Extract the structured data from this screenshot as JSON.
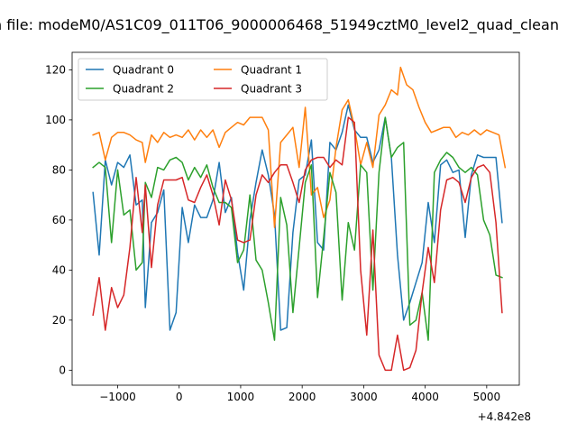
{
  "chart_data": {
    "type": "line",
    "title": "n file: modeM0/AS1C09_011T06_9000006468_51949cztM0_level2_quad_clean",
    "xlabel": "",
    "ylabel": "",
    "x_offset_label": "+4.842e8",
    "xlim": [
      -1740,
      5530
    ],
    "ylim": [
      -6,
      127
    ],
    "x_ticks": [
      -1000,
      0,
      1000,
      2000,
      3000,
      4000,
      5000
    ],
    "x_tick_labels": [
      "−1000",
      "0",
      "1000",
      "2000",
      "3000",
      "4000",
      "5000"
    ],
    "y_ticks": [
      0,
      20,
      40,
      60,
      80,
      100,
      120
    ],
    "y_tick_labels": [
      "0",
      "20",
      "40",
      "60",
      "80",
      "100",
      "120"
    ],
    "grid": false,
    "legend": {
      "placement": "top-left",
      "columns": 2
    },
    "series": [
      {
        "name": "Quadrant 0",
        "color": "#1f77b4",
        "points": [
          [
            -1400,
            71
          ],
          [
            -1300,
            46
          ],
          [
            -1200,
            84
          ],
          [
            -1100,
            74
          ],
          [
            -1000,
            83
          ],
          [
            -900,
            81
          ],
          [
            -800,
            86
          ],
          [
            -700,
            66
          ],
          [
            -600,
            68
          ],
          [
            -550,
            25
          ],
          [
            -450,
            59
          ],
          [
            -350,
            63
          ],
          [
            -250,
            72
          ],
          [
            -150,
            16
          ],
          [
            -50,
            23
          ],
          [
            50,
            65
          ],
          [
            150,
            51
          ],
          [
            250,
            66
          ],
          [
            350,
            61
          ],
          [
            450,
            61
          ],
          [
            550,
            68
          ],
          [
            650,
            83
          ],
          [
            750,
            63
          ],
          [
            850,
            69
          ],
          [
            950,
            47
          ],
          [
            1050,
            32
          ],
          [
            1150,
            60
          ],
          [
            1250,
            75
          ],
          [
            1350,
            88
          ],
          [
            1450,
            78
          ],
          [
            1550,
            62
          ],
          [
            1650,
            16
          ],
          [
            1750,
            17
          ],
          [
            1850,
            55
          ],
          [
            1950,
            76
          ],
          [
            2050,
            78
          ],
          [
            2150,
            92
          ],
          [
            2250,
            51
          ],
          [
            2350,
            48
          ],
          [
            2450,
            91
          ],
          [
            2550,
            88
          ],
          [
            2650,
            95
          ],
          [
            2750,
            106
          ],
          [
            2850,
            96
          ],
          [
            2950,
            93
          ],
          [
            3050,
            93
          ],
          [
            3150,
            83
          ],
          [
            3250,
            88
          ],
          [
            3350,
            101
          ],
          [
            3450,
            85
          ],
          [
            3550,
            46
          ],
          [
            3650,
            20
          ],
          [
            3750,
            27
          ],
          [
            3850,
            35
          ],
          [
            3950,
            43
          ],
          [
            4050,
            67
          ],
          [
            4150,
            51
          ],
          [
            4250,
            82
          ],
          [
            4350,
            84
          ],
          [
            4450,
            79
          ],
          [
            4550,
            80
          ],
          [
            4650,
            53
          ],
          [
            4750,
            78
          ],
          [
            4850,
            86
          ],
          [
            4950,
            85
          ],
          [
            5050,
            85
          ],
          [
            5150,
            85
          ],
          [
            5250,
            59
          ]
        ]
      },
      {
        "name": "Quadrant 1",
        "color": "#ff7f0e",
        "points": [
          [
            -1400,
            94
          ],
          [
            -1300,
            95
          ],
          [
            -1200,
            84
          ],
          [
            -1100,
            93
          ],
          [
            -1000,
            95
          ],
          [
            -900,
            95
          ],
          [
            -800,
            94
          ],
          [
            -700,
            92
          ],
          [
            -600,
            91
          ],
          [
            -550,
            83
          ],
          [
            -450,
            94
          ],
          [
            -350,
            91
          ],
          [
            -250,
            95
          ],
          [
            -150,
            93
          ],
          [
            -50,
            94
          ],
          [
            50,
            93
          ],
          [
            150,
            96
          ],
          [
            250,
            92
          ],
          [
            350,
            96
          ],
          [
            450,
            93
          ],
          [
            550,
            96
          ],
          [
            650,
            89
          ],
          [
            750,
            95
          ],
          [
            850,
            97
          ],
          [
            950,
            99
          ],
          [
            1050,
            98
          ],
          [
            1150,
            101
          ],
          [
            1250,
            101
          ],
          [
            1350,
            101
          ],
          [
            1450,
            96
          ],
          [
            1550,
            57
          ],
          [
            1650,
            91
          ],
          [
            1750,
            94
          ],
          [
            1850,
            97
          ],
          [
            1950,
            81
          ],
          [
            2050,
            105
          ],
          [
            2150,
            70
          ],
          [
            2250,
            73
          ],
          [
            2350,
            61
          ],
          [
            2450,
            68
          ],
          [
            2550,
            89
          ],
          [
            2650,
            104
          ],
          [
            2750,
            108
          ],
          [
            2850,
            97
          ],
          [
            2950,
            82
          ],
          [
            3050,
            91
          ],
          [
            3150,
            81
          ],
          [
            3250,
            102
          ],
          [
            3350,
            106
          ],
          [
            3450,
            112
          ],
          [
            3550,
            110
          ],
          [
            3600,
            121
          ],
          [
            3700,
            114
          ],
          [
            3800,
            112
          ],
          [
            3900,
            105
          ],
          [
            4000,
            99
          ],
          [
            4100,
            95
          ],
          [
            4200,
            96
          ],
          [
            4300,
            97
          ],
          [
            4400,
            97
          ],
          [
            4500,
            93
          ],
          [
            4600,
            95
          ],
          [
            4700,
            94
          ],
          [
            4800,
            96
          ],
          [
            4900,
            94
          ],
          [
            5000,
            96
          ],
          [
            5100,
            95
          ],
          [
            5200,
            94
          ],
          [
            5300,
            81
          ]
        ]
      },
      {
        "name": "Quadrant 2",
        "color": "#2ca02c",
        "points": [
          [
            -1400,
            81
          ],
          [
            -1300,
            83
          ],
          [
            -1200,
            81
          ],
          [
            -1100,
            51
          ],
          [
            -1000,
            80
          ],
          [
            -900,
            62
          ],
          [
            -800,
            64
          ],
          [
            -700,
            40
          ],
          [
            -600,
            43
          ],
          [
            -550,
            75
          ],
          [
            -450,
            69
          ],
          [
            -350,
            81
          ],
          [
            -250,
            80
          ],
          [
            -150,
            84
          ],
          [
            -50,
            85
          ],
          [
            50,
            83
          ],
          [
            150,
            76
          ],
          [
            250,
            81
          ],
          [
            350,
            77
          ],
          [
            450,
            82
          ],
          [
            550,
            73
          ],
          [
            650,
            67
          ],
          [
            750,
            67
          ],
          [
            850,
            65
          ],
          [
            950,
            43
          ],
          [
            1050,
            48
          ],
          [
            1150,
            70
          ],
          [
            1250,
            44
          ],
          [
            1350,
            40
          ],
          [
            1450,
            27
          ],
          [
            1550,
            12
          ],
          [
            1650,
            69
          ],
          [
            1750,
            58
          ],
          [
            1850,
            23
          ],
          [
            1950,
            49
          ],
          [
            2050,
            75
          ],
          [
            2150,
            82
          ],
          [
            2250,
            29
          ],
          [
            2350,
            53
          ],
          [
            2450,
            79
          ],
          [
            2550,
            71
          ],
          [
            2650,
            28
          ],
          [
            2750,
            59
          ],
          [
            2850,
            48
          ],
          [
            2950,
            82
          ],
          [
            3050,
            79
          ],
          [
            3150,
            32
          ],
          [
            3250,
            79
          ],
          [
            3350,
            101
          ],
          [
            3450,
            85
          ],
          [
            3550,
            89
          ],
          [
            3650,
            91
          ],
          [
            3750,
            18
          ],
          [
            3850,
            20
          ],
          [
            3950,
            31
          ],
          [
            4050,
            12
          ],
          [
            4150,
            79
          ],
          [
            4250,
            84
          ],
          [
            4350,
            87
          ],
          [
            4450,
            85
          ],
          [
            4550,
            81
          ],
          [
            4650,
            79
          ],
          [
            4750,
            81
          ],
          [
            4850,
            78
          ],
          [
            4950,
            60
          ],
          [
            5050,
            54
          ],
          [
            5150,
            38
          ],
          [
            5250,
            37
          ]
        ]
      },
      {
        "name": "Quadrant 3",
        "color": "#d62728",
        "points": [
          [
            -1400,
            22
          ],
          [
            -1300,
            37
          ],
          [
            -1200,
            16
          ],
          [
            -1100,
            33
          ],
          [
            -1000,
            25
          ],
          [
            -900,
            30
          ],
          [
            -800,
            49
          ],
          [
            -700,
            77
          ],
          [
            -600,
            55
          ],
          [
            -550,
            74
          ],
          [
            -450,
            41
          ],
          [
            -350,
            66
          ],
          [
            -250,
            76
          ],
          [
            -150,
            76
          ],
          [
            -50,
            76
          ],
          [
            50,
            77
          ],
          [
            150,
            68
          ],
          [
            250,
            67
          ],
          [
            350,
            73
          ],
          [
            450,
            78
          ],
          [
            550,
            70
          ],
          [
            650,
            58
          ],
          [
            750,
            76
          ],
          [
            850,
            68
          ],
          [
            950,
            52
          ],
          [
            1050,
            51
          ],
          [
            1150,
            52
          ],
          [
            1250,
            70
          ],
          [
            1350,
            78
          ],
          [
            1450,
            75
          ],
          [
            1550,
            79
          ],
          [
            1650,
            82
          ],
          [
            1750,
            82
          ],
          [
            1850,
            75
          ],
          [
            1950,
            67
          ],
          [
            2050,
            80
          ],
          [
            2150,
            84
          ],
          [
            2250,
            85
          ],
          [
            2350,
            85
          ],
          [
            2450,
            81
          ],
          [
            2550,
            84
          ],
          [
            2650,
            82
          ],
          [
            2750,
            101
          ],
          [
            2850,
            99
          ],
          [
            2950,
            40
          ],
          [
            3050,
            14
          ],
          [
            3150,
            56
          ],
          [
            3250,
            6
          ],
          [
            3350,
            0
          ],
          [
            3450,
            0
          ],
          [
            3550,
            14
          ],
          [
            3650,
            0
          ],
          [
            3750,
            1
          ],
          [
            3850,
            8
          ],
          [
            3950,
            31
          ],
          [
            4050,
            49
          ],
          [
            4150,
            35
          ],
          [
            4250,
            64
          ],
          [
            4350,
            76
          ],
          [
            4450,
            77
          ],
          [
            4550,
            75
          ],
          [
            4650,
            67
          ],
          [
            4750,
            77
          ],
          [
            4850,
            81
          ],
          [
            4950,
            82
          ],
          [
            5050,
            79
          ],
          [
            5150,
            59
          ],
          [
            5250,
            23
          ]
        ]
      }
    ]
  }
}
